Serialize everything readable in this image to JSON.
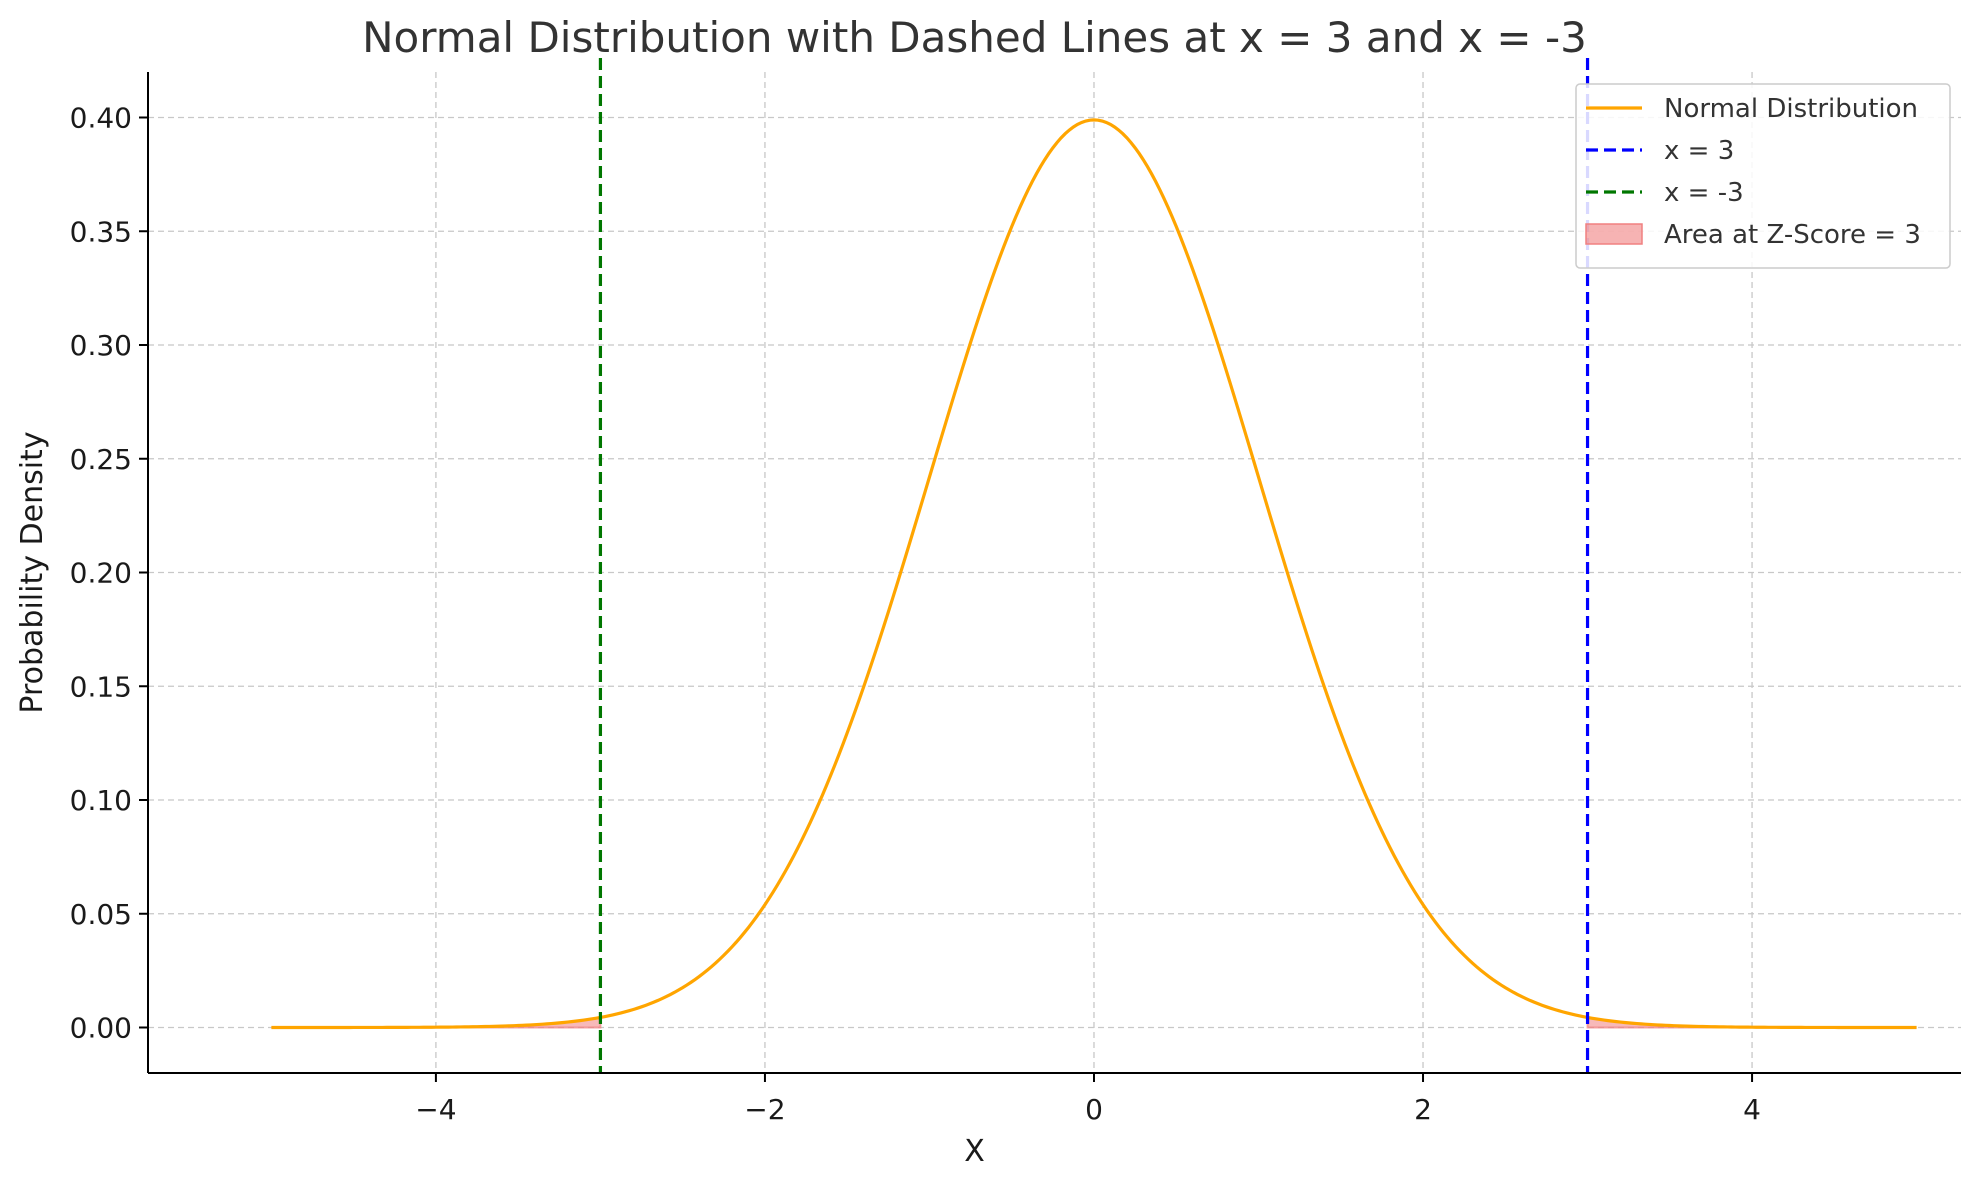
{
  "chart_data": {
    "type": "line",
    "title": "Normal Distribution with Dashed Lines at x = 3 and x = -3",
    "xlabel": "X",
    "ylabel": "Probability Density",
    "xlim": [
      -5.75,
      5.27
    ],
    "ylim": [
      -0.02,
      0.42
    ],
    "xticks": [
      -4,
      -2,
      0,
      2,
      4
    ],
    "xtick_labels": [
      "−4",
      "−2",
      "0",
      "2",
      "4"
    ],
    "yticks": [
      0.0,
      0.05,
      0.1,
      0.15,
      0.2,
      0.25,
      0.3,
      0.35,
      0.4
    ],
    "ytick_labels": [
      "0.00",
      "0.05",
      "0.10",
      "0.15",
      "0.20",
      "0.25",
      "0.30",
      "0.35",
      "0.40"
    ],
    "grid": true,
    "legend_position": "top-right",
    "series": [
      {
        "name": "Normal Distribution",
        "kind": "line",
        "color": "#FFA500",
        "mean": 0,
        "std": 1,
        "x_range": [
          -5,
          5
        ],
        "points": [
          [
            -5.0,
            0.0
          ],
          [
            -4.5,
            0.0
          ],
          [
            -4.0,
            0.0001
          ],
          [
            -3.5,
            0.0009
          ],
          [
            -3.0,
            0.0044
          ],
          [
            -2.5,
            0.0175
          ],
          [
            -2.0,
            0.054
          ],
          [
            -1.5,
            0.1295
          ],
          [
            -1.0,
            0.242
          ],
          [
            -0.5,
            0.3521
          ],
          [
            0.0,
            0.3989
          ],
          [
            0.5,
            0.3521
          ],
          [
            1.0,
            0.242
          ],
          [
            1.5,
            0.1295
          ],
          [
            2.0,
            0.054
          ],
          [
            2.5,
            0.0175
          ],
          [
            3.0,
            0.0044
          ],
          [
            3.5,
            0.0009
          ],
          [
            4.0,
            0.0001
          ],
          [
            4.5,
            0.0
          ],
          [
            5.0,
            0.0
          ]
        ]
      },
      {
        "name": "x = 3",
        "kind": "vline",
        "x": 3,
        "color": "#0000FF"
      },
      {
        "name": "x = -3",
        "kind": "vline",
        "x": -3,
        "color": "#007700"
      },
      {
        "name": "Area at Z-Score = 3",
        "kind": "area",
        "color": "#F08080",
        "regions": [
          [
            -5,
            -3
          ],
          [
            3,
            5
          ]
        ]
      }
    ]
  }
}
